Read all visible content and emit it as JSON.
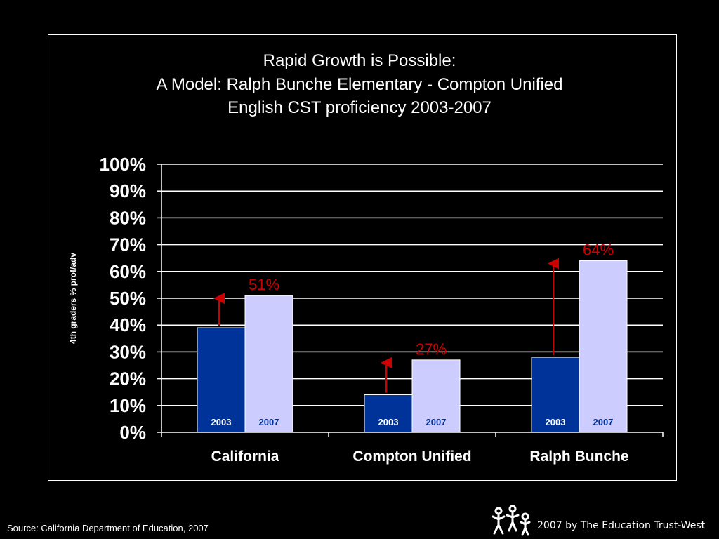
{
  "title_lines": [
    "Rapid Growth is Possible:",
    "A Model: Ralph Bunche Elementary - Compton Unified",
    "English CST proficiency 2003-2007"
  ],
  "source": "Source: California Department of Education, 2007",
  "copyright": "2007 by The Education Trust-West",
  "colors": {
    "bar_2003": "#003399",
    "bar_2007": "#CCCCFF",
    "annotation": "#CC0000",
    "background": "#000000",
    "text": "#FFFFFF"
  },
  "chart_data": {
    "type": "bar",
    "categories": [
      "California",
      "Compton Unified",
      "Ralph Bunche"
    ],
    "series": [
      {
        "name": "2003",
        "values": [
          39,
          14,
          28
        ]
      },
      {
        "name": "2007",
        "values": [
          51,
          27,
          64
        ]
      }
    ],
    "ylabel": "4th graders % prof/adv",
    "ylim": [
      0,
      100
    ],
    "yticks": [
      "0%",
      "10%",
      "20%",
      "30%",
      "40%",
      "50%",
      "60%",
      "70%",
      "80%",
      "90%",
      "100%"
    ],
    "grid": true,
    "value_labels": [
      "51%",
      "27%",
      "64%"
    ]
  }
}
